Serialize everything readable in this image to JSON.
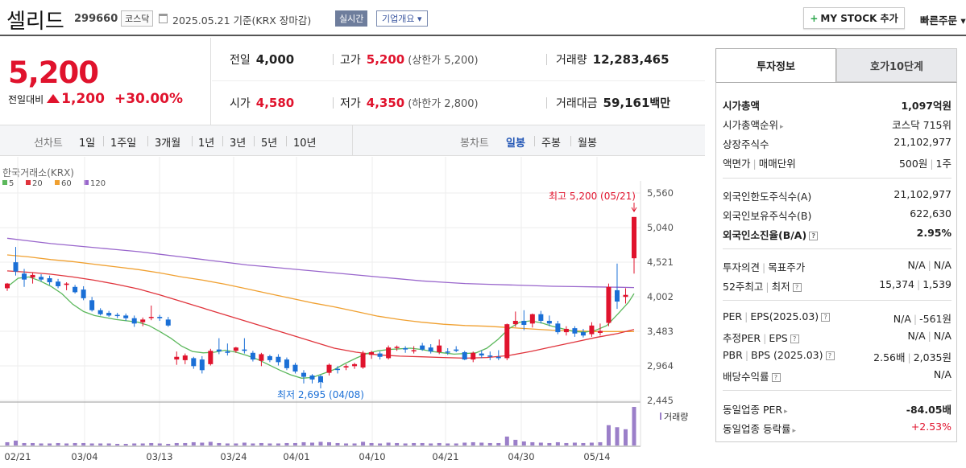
{
  "header": {
    "name": "셀리드",
    "code": "299660",
    "market": "코스닥",
    "as_of": "2025.05.21  기준(KRX 장마감)",
    "realtime": "실시간",
    "company_info": "기업개요 ▾",
    "mystock_label": "MY STOCK 추가",
    "quick_order": "빠른주문"
  },
  "price": {
    "current": "5,200",
    "change_label": "전일대비",
    "change_abs": "1,200",
    "change_pct": "+30.00%"
  },
  "quote": {
    "prev_label": "전일",
    "prev_value": "4,000",
    "high_label": "고가",
    "high_value": "5,200",
    "high_sub": "(상한가 5,200)",
    "volume_label": "거래량",
    "volume_value": "12,283,465",
    "open_label": "시가",
    "open_value": "4,580",
    "low_label": "저가",
    "low_value": "4,350",
    "low_sub": "(하한가 2,800)",
    "amount_label": "거래대금",
    "amount_value": "59,161",
    "amount_unit": "백만"
  },
  "toolbar": {
    "line_label": "선차트",
    "periods": [
      "1일",
      "1주일",
      "3개월",
      "1년",
      "3년",
      "5년",
      "10년"
    ],
    "candle_label": "봉차트",
    "candles": [
      "일봉",
      "주봉",
      "월봉"
    ],
    "active_candle": "일봉"
  },
  "chart_data": {
    "type": "candlestick",
    "source_label": "한국거래소(KRX)",
    "legend": [
      {
        "name": "5",
        "color": "#5cb85c"
      },
      {
        "name": "20",
        "color": "#e0343c"
      },
      {
        "name": "60",
        "color": "#f0a030"
      },
      {
        "name": "120",
        "color": "#9966cc"
      }
    ],
    "y_ticks": [
      2445,
      2964,
      3483,
      4002,
      4521,
      5040,
      5560
    ],
    "y_tick_labels": [
      "2,445",
      "2,964",
      "3,483",
      "4,002",
      "4,521",
      "5,040",
      "5,560"
    ],
    "x_labels": [
      "02/21",
      "03/04",
      "03/13",
      "03/24",
      "04/01",
      "04/10",
      "04/21",
      "04/30",
      "05/14"
    ],
    "high_annotation": "최고 5,200 (05/21)",
    "low_annotation": "최저 2,695 (04/08)",
    "volume_label": "거래량",
    "candles": [
      [
        4130,
        4210,
        4090,
        4200
      ],
      [
        4520,
        4750,
        4320,
        4380
      ],
      [
        4350,
        4420,
        4150,
        4260
      ],
      [
        4290,
        4360,
        4200,
        4330
      ],
      [
        4300,
        4340,
        4230,
        4260
      ],
      [
        4280,
        4320,
        4180,
        4220
      ],
      [
        4230,
        4270,
        4130,
        4160
      ],
      [
        4180,
        4220,
        4100,
        4200
      ],
      [
        4150,
        4180,
        4050,
        4070
      ],
      [
        4110,
        4160,
        3950,
        3980
      ],
      [
        3950,
        4000,
        3780,
        3800
      ],
      [
        3800,
        3830,
        3720,
        3740
      ],
      [
        3760,
        3790,
        3700,
        3720
      ],
      [
        3730,
        3760,
        3680,
        3720
      ],
      [
        3720,
        3750,
        3640,
        3680
      ],
      [
        3680,
        3720,
        3550,
        3600
      ],
      [
        3620,
        3690,
        3560,
        3660
      ],
      [
        3700,
        3870,
        3650,
        3700
      ],
      [
        3700,
        3730,
        3640,
        3680
      ],
      [
        3660,
        3700,
        3550,
        3570
      ],
      [
        3060,
        3180,
        2980,
        3100
      ],
      [
        3050,
        3150,
        2990,
        3120
      ],
      [
        3080,
        3100,
        2920,
        2960
      ],
      [
        3060,
        3110,
        2850,
        2900
      ],
      [
        2990,
        3220,
        2970,
        3190
      ],
      [
        3210,
        3380,
        3140,
        3180
      ],
      [
        3180,
        3300,
        3120,
        3160
      ],
      [
        3190,
        3250,
        3160,
        3240
      ],
      [
        3210,
        3380,
        3150,
        3190
      ],
      [
        3160,
        3190,
        3030,
        3060
      ],
      [
        3040,
        3160,
        2960,
        3140
      ],
      [
        3110,
        3130,
        3020,
        3050
      ],
      [
        3100,
        3140,
        2970,
        3020
      ],
      [
        3060,
        3090,
        2900,
        2930
      ],
      [
        2980,
        3010,
        2850,
        2880
      ],
      [
        2860,
        2900,
        2700,
        2800
      ],
      [
        2820,
        2840,
        2700,
        2760
      ],
      [
        2810,
        2830,
        2695,
        2720
      ],
      [
        2860,
        3000,
        2820,
        2980
      ],
      [
        2920,
        2960,
        2850,
        2910
      ],
      [
        2940,
        2990,
        2900,
        2960
      ],
      [
        2960,
        3010,
        2920,
        2990
      ],
      [
        2940,
        3190,
        2920,
        3150
      ],
      [
        3130,
        3190,
        3070,
        3170
      ],
      [
        3150,
        3180,
        3060,
        3100
      ],
      [
        3080,
        3270,
        3060,
        3240
      ],
      [
        3240,
        3270,
        3190,
        3250
      ],
      [
        3230,
        3260,
        3160,
        3210
      ],
      [
        3200,
        3260,
        3150,
        3200
      ],
      [
        3270,
        3310,
        3190,
        3210
      ],
      [
        3240,
        3290,
        3150,
        3180
      ],
      [
        3170,
        3360,
        3140,
        3270
      ],
      [
        3180,
        3230,
        3130,
        3170
      ],
      [
        3210,
        3260,
        3170,
        3190
      ],
      [
        3170,
        3190,
        3050,
        3060
      ],
      [
        3060,
        3180,
        3020,
        3160
      ],
      [
        3150,
        3200,
        3080,
        3120
      ],
      [
        3120,
        3180,
        3050,
        3110
      ],
      [
        3100,
        3200,
        3050,
        3080
      ],
      [
        3080,
        3600,
        3050,
        3590
      ],
      [
        3590,
        3780,
        3550,
        3640
      ],
      [
        3640,
        3800,
        3500,
        3580
      ],
      [
        3600,
        3750,
        3540,
        3740
      ],
      [
        3740,
        3790,
        3600,
        3640
      ],
      [
        3640,
        3720,
        3560,
        3600
      ],
      [
        3600,
        3640,
        3440,
        3470
      ],
      [
        3470,
        3560,
        3420,
        3520
      ],
      [
        3530,
        3560,
        3400,
        3450
      ],
      [
        3470,
        3520,
        3390,
        3420
      ],
      [
        3440,
        3620,
        3400,
        3570
      ],
      [
        3460,
        3600,
        3420,
        3490
      ],
      [
        3610,
        4200,
        3560,
        4150
      ],
      [
        4100,
        4500,
        3820,
        3930
      ],
      [
        4000,
        4130,
        3900,
        4030
      ],
      [
        4580,
        5200,
        4350,
        5200
      ]
    ],
    "ma5": [
      [
        0,
        4150
      ],
      [
        10,
        4280
      ],
      [
        20,
        4300
      ],
      [
        30,
        4240
      ],
      [
        40,
        4160
      ],
      [
        50,
        4050
      ],
      [
        60,
        3890
      ],
      [
        70,
        3780
      ],
      [
        80,
        3720
      ],
      [
        90,
        3690
      ],
      [
        100,
        3660
      ],
      [
        110,
        3640
      ],
      [
        120,
        3620
      ],
      [
        130,
        3570
      ],
      [
        140,
        3480
      ],
      [
        150,
        3380
      ],
      [
        160,
        3260
      ],
      [
        170,
        3180
      ],
      [
        180,
        3160
      ],
      [
        190,
        3170
      ],
      [
        200,
        3200
      ],
      [
        210,
        3170
      ],
      [
        220,
        3120
      ],
      [
        230,
        3060
      ],
      [
        240,
        2980
      ],
      [
        250,
        2900
      ],
      [
        260,
        2830
      ],
      [
        270,
        2780
      ],
      [
        280,
        2790
      ],
      [
        290,
        2850
      ],
      [
        300,
        2910
      ],
      [
        310,
        3000
      ],
      [
        320,
        3080
      ],
      [
        330,
        3150
      ],
      [
        340,
        3190
      ],
      [
        350,
        3210
      ],
      [
        360,
        3220
      ],
      [
        370,
        3230
      ],
      [
        380,
        3210
      ],
      [
        390,
        3180
      ],
      [
        400,
        3160
      ],
      [
        410,
        3140
      ],
      [
        420,
        3150
      ],
      [
        430,
        3160
      ],
      [
        440,
        3230
      ],
      [
        450,
        3360
      ],
      [
        460,
        3520
      ],
      [
        470,
        3620
      ],
      [
        480,
        3640
      ],
      [
        490,
        3610
      ],
      [
        500,
        3560
      ],
      [
        510,
        3520
      ],
      [
        520,
        3480
      ],
      [
        530,
        3470
      ],
      [
        540,
        3500
      ],
      [
        550,
        3570
      ],
      [
        560,
        3740
      ],
      [
        570,
        3920
      ],
      [
        575,
        4050
      ]
    ],
    "ma20": [
      [
        0,
        4390
      ],
      [
        20,
        4370
      ],
      [
        40,
        4340
      ],
      [
        60,
        4300
      ],
      [
        80,
        4250
      ],
      [
        100,
        4190
      ],
      [
        120,
        4120
      ],
      [
        140,
        4030
      ],
      [
        160,
        3930
      ],
      [
        180,
        3830
      ],
      [
        200,
        3730
      ],
      [
        220,
        3630
      ],
      [
        240,
        3530
      ],
      [
        260,
        3430
      ],
      [
        280,
        3330
      ],
      [
        300,
        3230
      ],
      [
        320,
        3170
      ],
      [
        340,
        3130
      ],
      [
        360,
        3110
      ],
      [
        380,
        3100
      ],
      [
        400,
        3090
      ],
      [
        420,
        3080
      ],
      [
        440,
        3090
      ],
      [
        460,
        3120
      ],
      [
        480,
        3180
      ],
      [
        500,
        3250
      ],
      [
        520,
        3320
      ],
      [
        540,
        3390
      ],
      [
        560,
        3450
      ],
      [
        570,
        3490
      ],
      [
        575,
        3510
      ]
    ],
    "ma60": [
      [
        0,
        4630
      ],
      [
        20,
        4600
      ],
      [
        40,
        4560
      ],
      [
        60,
        4530
      ],
      [
        80,
        4490
      ],
      [
        100,
        4450
      ],
      [
        120,
        4410
      ],
      [
        140,
        4360
      ],
      [
        160,
        4300
      ],
      [
        180,
        4250
      ],
      [
        200,
        4190
      ],
      [
        220,
        4120
      ],
      [
        240,
        4050
      ],
      [
        260,
        3980
      ],
      [
        280,
        3910
      ],
      [
        300,
        3850
      ],
      [
        320,
        3780
      ],
      [
        340,
        3710
      ],
      [
        360,
        3660
      ],
      [
        380,
        3620
      ],
      [
        400,
        3590
      ],
      [
        420,
        3570
      ],
      [
        440,
        3560
      ],
      [
        460,
        3540
      ],
      [
        480,
        3520
      ],
      [
        500,
        3500
      ],
      [
        520,
        3490
      ],
      [
        540,
        3480
      ],
      [
        560,
        3480
      ],
      [
        575,
        3480
      ]
    ],
    "ma120": [
      [
        0,
        4880
      ],
      [
        20,
        4840
      ],
      [
        40,
        4800
      ],
      [
        60,
        4770
      ],
      [
        80,
        4740
      ],
      [
        100,
        4710
      ],
      [
        120,
        4680
      ],
      [
        140,
        4640
      ],
      [
        160,
        4600
      ],
      [
        180,
        4560
      ],
      [
        200,
        4520
      ],
      [
        220,
        4480
      ],
      [
        240,
        4450
      ],
      [
        260,
        4420
      ],
      [
        280,
        4390
      ],
      [
        300,
        4360
      ],
      [
        320,
        4330
      ],
      [
        340,
        4300
      ],
      [
        360,
        4270
      ],
      [
        380,
        4240
      ],
      [
        400,
        4220
      ],
      [
        420,
        4200
      ],
      [
        440,
        4190
      ],
      [
        460,
        4180
      ],
      [
        480,
        4170
      ],
      [
        500,
        4160
      ],
      [
        520,
        4155
      ],
      [
        540,
        4150
      ],
      [
        560,
        4145
      ],
      [
        575,
        4140
      ]
    ],
    "volumes": [
      8,
      12,
      6,
      6,
      5,
      5,
      6,
      5,
      6,
      6,
      5,
      5,
      5,
      4,
      4,
      5,
      5,
      6,
      5,
      4,
      6,
      6,
      8,
      7,
      9,
      6,
      5,
      5,
      7,
      5,
      6,
      5,
      5,
      6,
      6,
      8,
      7,
      9,
      8,
      6,
      5,
      5,
      9,
      6,
      5,
      7,
      6,
      5,
      6,
      6,
      5,
      6,
      5,
      5,
      7,
      8,
      7,
      6,
      6,
      22,
      14,
      10,
      8,
      7,
      6,
      8,
      6,
      7,
      6,
      7,
      8,
      50,
      45,
      40,
      95
    ]
  },
  "side_panel": {
    "tab_active": "투자정보",
    "tab_inactive": "호가10단계",
    "rows": [
      {
        "k": "시가총액",
        "v": "1,097억원"
      },
      {
        "k": "시가총액순위",
        "v": "코스닥 715위"
      },
      {
        "k": "상장주식수",
        "v": "21,102,977"
      },
      {
        "k": "액면가",
        "k2": "매매단위",
        "v": "500원",
        "v2": "1주"
      },
      {
        "k": "외국인한도주식수(A)",
        "v": "21,102,977"
      },
      {
        "k": "외국인보유주식수(B)",
        "v": "622,630"
      },
      {
        "k": "외국인소진율(B/A)",
        "v": "2.95%"
      },
      {
        "k": "투자의견",
        "k2": "목표주가",
        "v": "N/A",
        "v2": "N/A"
      },
      {
        "k": "52주최고",
        "k2": "최저",
        "v": "15,374",
        "v2": "1,539"
      },
      {
        "k": "PER",
        "k2": "EPS(2025.03)",
        "v": "N/A",
        "v2": "-561원"
      },
      {
        "k": "추정PER",
        "k2": "EPS",
        "v": "N/A",
        "v2": "N/A"
      },
      {
        "k": "PBR",
        "k2": "BPS (2025.03)",
        "v": "2.56배",
        "v2": "2,035원"
      },
      {
        "k": "배당수익률",
        "v": "N/A"
      },
      {
        "k": "동일업종 PER",
        "v": "-84.05배"
      },
      {
        "k": "동일업종 등락률",
        "v": "+2.53%"
      }
    ],
    "colors": {
      "up": "#e0132d",
      "down": "#1a6fd6"
    }
  }
}
